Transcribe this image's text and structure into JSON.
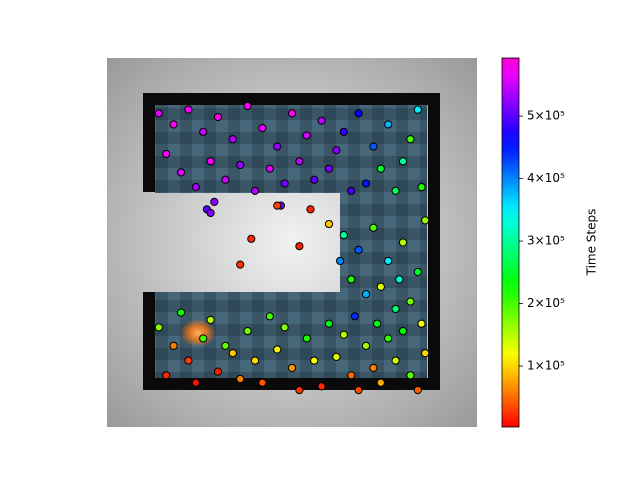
{
  "chart_data": {
    "type": "scatter",
    "xlim": [
      0,
      100
    ],
    "ylim": [
      100,
      0
    ],
    "marker_edge_color": "#000000",
    "series": [
      {
        "x": [
          14,
          18,
          22,
          26,
          30,
          34,
          38,
          42,
          46,
          50,
          54,
          58,
          62,
          16,
          20,
          24,
          28,
          32,
          36,
          40,
          44,
          48,
          52,
          56,
          60,
          64,
          68,
          72,
          76,
          80,
          84,
          70,
          74,
          82,
          66,
          78,
          85,
          29,
          47,
          46,
          39,
          36,
          52,
          55,
          60,
          27,
          28,
          64,
          68,
          72,
          76,
          80,
          84,
          66,
          70,
          74,
          78,
          82,
          86,
          85,
          63,
          67,
          73,
          79,
          14,
          18,
          22,
          26,
          30,
          34,
          38,
          42,
          46,
          50,
          54,
          58,
          62,
          66,
          70,
          74,
          78,
          82,
          86,
          16,
          20,
          28,
          36,
          44,
          52,
          60,
          68,
          76,
          84,
          24,
          48,
          56,
          32,
          40,
          64,
          72,
          80
        ],
        "y": [
          15,
          18,
          14,
          20,
          16,
          22,
          13,
          19,
          24,
          15,
          21,
          17,
          25,
          26,
          31,
          35,
          28,
          33,
          29,
          36,
          30,
          34,
          28,
          33,
          30,
          20,
          15,
          24,
          18,
          28,
          14,
          34,
          30,
          22,
          36,
          36,
          35,
          39,
          40,
          40,
          49,
          56,
          51,
          41,
          45,
          41,
          42,
          48,
          52,
          46,
          55,
          50,
          58,
          60,
          64,
          62,
          68,
          66,
          44,
          72,
          55,
          70,
          72,
          60,
          73,
          78,
          82,
          76,
          85,
          80,
          74,
          88,
          79,
          84,
          76,
          89,
          81,
          86,
          78,
          88,
          82,
          86,
          80,
          86,
          69,
          71,
          87,
          70,
          90,
          72,
          90,
          76,
          90,
          88,
          73,
          82,
          78,
          82,
          75,
          84,
          74
        ],
        "values": [
          560000,
          580000,
          570000,
          550000,
          585000,
          540000,
          575000,
          565000,
          530000,
          580000,
          555000,
          545000,
          520000,
          570000,
          560000,
          535000,
          575000,
          550000,
          525000,
          540000,
          560000,
          510000,
          545000,
          500000,
          515000,
          480000,
          460000,
          420000,
          380000,
          300000,
          350000,
          450000,
          250000,
          200000,
          490000,
          270000,
          220000,
          520000,
          505000,
          30000,
          20000,
          25000,
          15000,
          20000,
          90000,
          500000,
          520000,
          300000,
          420000,
          200000,
          350000,
          150000,
          250000,
          220000,
          380000,
          130000,
          280000,
          180000,
          160000,
          120000,
          400000,
          440000,
          240000,
          320000,
          170000,
          60000,
          30000,
          200000,
          15000,
          90000,
          180000,
          40000,
          110000,
          70000,
          220000,
          20000,
          130000,
          50000,
          160000,
          80000,
          140000,
          190000,
          100000,
          20000,
          230000,
          150000,
          60000,
          200000,
          25000,
          240000,
          35000,
          210000,
          45000,
          10000,
          170000,
          120000,
          190000,
          100000,
          150000,
          60000,
          230000
        ]
      }
    ],
    "colorbar": {
      "label": "Time Steps",
      "cmap": "gist_rainbow",
      "lim": [
        2400,
        593000
      ],
      "ticks": [
        {
          "value": 100000,
          "label": "1×10⁵"
        },
        {
          "value": 200000,
          "label": "2×10⁵"
        },
        {
          "value": 300000,
          "label": "3×10⁵"
        },
        {
          "value": 400000,
          "label": "4×10⁵"
        },
        {
          "value": 500000,
          "label": "5×10⁵"
        }
      ]
    }
  }
}
